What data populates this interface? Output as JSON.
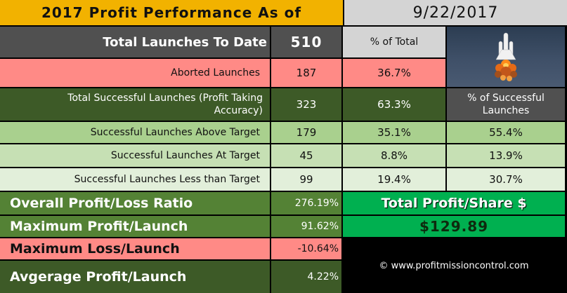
{
  "header": {
    "title": "2017 Profit Performance As of",
    "date": "9/22/2017"
  },
  "launches": {
    "label": "Total Launches To Date",
    "value": "510",
    "pct_total_label": "% of Total"
  },
  "aborted": {
    "label": "Aborted Launches",
    "count": "187",
    "pct": "36.7%"
  },
  "successful": {
    "label": "Total Successful Launches (Profit Taking Accuracy)",
    "count": "323",
    "pct": "63.3%",
    "pct_successful_label": "% of Successful Launches"
  },
  "rows": [
    {
      "label": "Successful Launches Above Target",
      "count": "179",
      "pct_total": "35.1%",
      "pct_successful": "55.4%"
    },
    {
      "label": "Successful Launches At Target",
      "count": "45",
      "pct_total": "8.8%",
      "pct_successful": "13.9%"
    },
    {
      "label": "Successful Launches Less than Target",
      "count": "99",
      "pct_total": "19.4%",
      "pct_successful": "30.7%"
    }
  ],
  "summary": {
    "ratio_label": "Overall Profit/Loss Ratio",
    "ratio_value": "276.19%",
    "max_profit_label": "Maximum Profit/Launch",
    "max_profit_value": "91.62%",
    "max_loss_label": "Maximum Loss/Launch",
    "max_loss_value": "-10.64%",
    "avg_label": "Avgerage Profit/Launch",
    "avg_value": "4.22%"
  },
  "total_profit": {
    "label": "Total Profit/Share $",
    "value": "$129.89"
  },
  "footer": {
    "copyright": "© www.profitmissioncontrol.com"
  },
  "colors": {
    "gold": "#f2b200",
    "silver": "#d4d4d4",
    "charcoal": "#505050",
    "salmon": "#ff8a86",
    "forest": "#3d5a27",
    "green_light_1": "#a9d08e",
    "green_light_2": "#c6e0b4",
    "green_light_3": "#e2efda",
    "olive": "#548235",
    "bright_green": "#00b050"
  },
  "icons": {
    "launch_image": "space-shuttle-launch-icon"
  }
}
